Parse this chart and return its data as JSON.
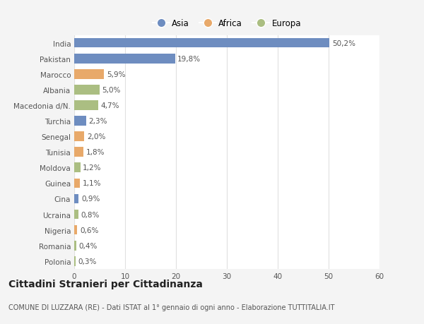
{
  "categories": [
    "India",
    "Pakistan",
    "Marocco",
    "Albania",
    "Macedonia d/N.",
    "Turchia",
    "Senegal",
    "Tunisia",
    "Moldova",
    "Guinea",
    "Cina",
    "Ucraina",
    "Nigeria",
    "Romania",
    "Polonia"
  ],
  "values": [
    50.2,
    19.8,
    5.9,
    5.0,
    4.7,
    2.3,
    2.0,
    1.8,
    1.2,
    1.1,
    0.9,
    0.8,
    0.6,
    0.4,
    0.3
  ],
  "labels": [
    "50,2%",
    "19,8%",
    "5,9%",
    "5,0%",
    "4,7%",
    "2,3%",
    "2,0%",
    "1,8%",
    "1,2%",
    "1,1%",
    "0,9%",
    "0,8%",
    "0,6%",
    "0,4%",
    "0,3%"
  ],
  "continent": [
    "Asia",
    "Asia",
    "Africa",
    "Europa",
    "Europa",
    "Asia",
    "Africa",
    "Africa",
    "Europa",
    "Africa",
    "Asia",
    "Europa",
    "Africa",
    "Europa",
    "Europa"
  ],
  "colors": {
    "Asia": "#6e8dc0",
    "Africa": "#e8a96a",
    "Europa": "#abbe82"
  },
  "legend_labels": [
    "Asia",
    "Africa",
    "Europa"
  ],
  "title": "Cittadini Stranieri per Cittadinanza",
  "subtitle": "COMUNE DI LUZZARA (RE) - Dati ISTAT al 1° gennaio di ogni anno - Elaborazione TUTTITALIA.IT",
  "xlim": [
    0,
    60
  ],
  "xticks": [
    0,
    10,
    20,
    30,
    40,
    50,
    60
  ],
  "background_color": "#f4f4f4",
  "bar_background": "#ffffff",
  "grid_color": "#e0e0e0",
  "text_color": "#555555",
  "label_fontsize": 7.5,
  "tick_fontsize": 7.5,
  "title_fontsize": 10,
  "subtitle_fontsize": 7
}
